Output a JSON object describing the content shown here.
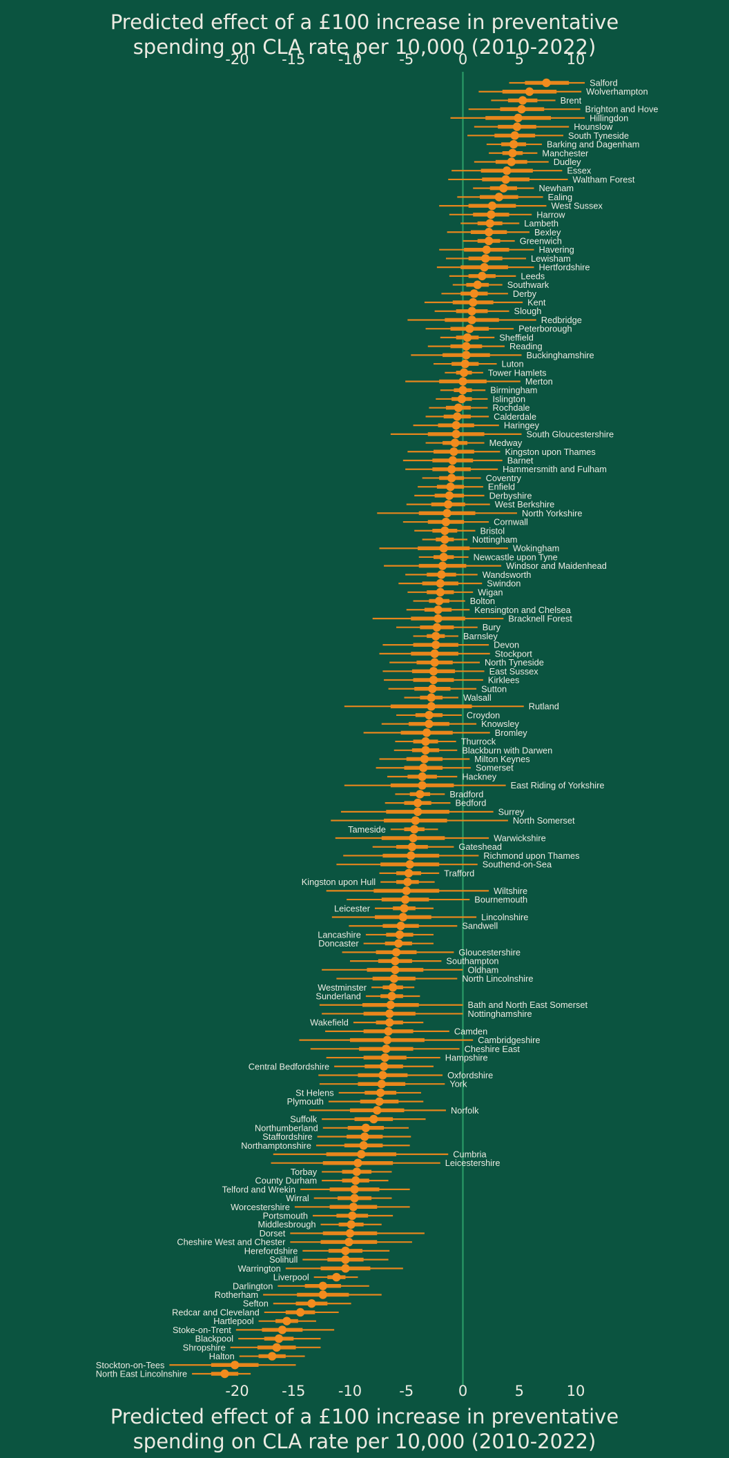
{
  "chart_data": {
    "type": "scatter",
    "title": "Predicted effect of a £100 increase in preventative spending on CLA rate per 10,000 (2010-2022)",
    "title_lines": [
      "Predicted effect of a £100 increase in preventative",
      "spending on CLA rate per 10,000 (2010-2022)"
    ],
    "xlabel": "",
    "ylabel": "",
    "xlim": [
      -22.5,
      11.5
    ],
    "x_ticks": [
      -20,
      -15,
      -10,
      -5,
      0,
      5,
      10
    ],
    "x_tick_labels": [
      "-20",
      "-15",
      "-10",
      "-5",
      "0",
      "5",
      "10"
    ],
    "x_axes": [
      "top",
      "bottom"
    ],
    "reference_line_x": 0,
    "grid": false,
    "colors": {
      "background": "#0b5440",
      "point": "#f28c1e",
      "interval": "#e8861c",
      "reference_line": "#2a9a66",
      "text": "#ecebe2"
    },
    "columns": [
      "label",
      "estimate",
      "inner_low",
      "inner_high",
      "outer_low",
      "outer_high"
    ],
    "rows": [
      [
        "Salford",
        7.4,
        5.5,
        9.4,
        4.1,
        10.8
      ],
      [
        "Wolverhampton",
        5.9,
        3.5,
        8.3,
        1.4,
        10.5
      ],
      [
        "Brent",
        5.3,
        4.0,
        6.6,
        2.5,
        8.2
      ],
      [
        "Brighton and Hove",
        5.2,
        3.3,
        7.2,
        0.5,
        10.4
      ],
      [
        "Hillingdon",
        4.9,
        2.0,
        7.8,
        -1.1,
        10.8
      ],
      [
        "Hounslow",
        4.8,
        3.1,
        6.5,
        1.0,
        9.4
      ],
      [
        "South Tyneside",
        4.6,
        2.8,
        6.4,
        0.4,
        8.9
      ],
      [
        "Barking and Dagenham",
        4.5,
        3.4,
        5.6,
        2.1,
        7.0
      ],
      [
        "Manchester",
        4.4,
        3.5,
        5.3,
        2.3,
        6.6
      ],
      [
        "Dudley",
        4.3,
        2.9,
        5.7,
        1.0,
        7.6
      ],
      [
        "Essex",
        3.9,
        1.6,
        6.2,
        -1.0,
        8.8
      ],
      [
        "Waltham Forest",
        3.8,
        1.7,
        5.9,
        -1.3,
        9.3
      ],
      [
        "Newham",
        3.6,
        2.4,
        4.8,
        0.9,
        6.3
      ],
      [
        "Ealing",
        3.2,
        1.5,
        4.9,
        -0.5,
        7.1
      ],
      [
        "West Sussex",
        2.6,
        0.5,
        4.7,
        -2.1,
        7.4
      ],
      [
        "Harrow",
        2.5,
        0.9,
        4.1,
        -1.2,
        6.1
      ],
      [
        "Lambeth",
        2.4,
        1.3,
        3.5,
        -0.2,
        5.0
      ],
      [
        "Bexley",
        2.3,
        0.7,
        3.9,
        -1.4,
        5.9
      ],
      [
        "Greenwich",
        2.3,
        1.3,
        3.3,
        0.0,
        4.6
      ],
      [
        "Havering",
        2.1,
        0.1,
        4.1,
        -2.1,
        6.3
      ],
      [
        "Lewisham",
        2.0,
        0.5,
        3.5,
        -1.5,
        5.6
      ],
      [
        "Hertfordshire",
        1.9,
        -0.2,
        4.0,
        -2.3,
        6.3
      ],
      [
        "Leeds",
        1.7,
        0.5,
        2.9,
        -1.2,
        4.7
      ],
      [
        "Southwark",
        1.3,
        0.3,
        2.3,
        -0.9,
        3.5
      ],
      [
        "Derby",
        1.0,
        -0.2,
        2.2,
        -1.9,
        4.0
      ],
      [
        "Kent",
        0.9,
        -0.9,
        2.7,
        -3.4,
        5.3
      ],
      [
        "Slough",
        0.8,
        -0.6,
        2.2,
        -2.5,
        4.1
      ],
      [
        "Redbridge",
        0.8,
        -1.6,
        3.2,
        -4.9,
        6.5
      ],
      [
        "Peterborough",
        0.6,
        -1.1,
        2.3,
        -3.3,
        4.5
      ],
      [
        "Sheffield",
        0.4,
        -0.6,
        1.4,
        -2.0,
        2.8
      ],
      [
        "Reading",
        0.3,
        -1.1,
        1.7,
        -3.1,
        3.7
      ],
      [
        "Buckinghamshire",
        0.3,
        -1.8,
        2.4,
        -4.6,
        5.2
      ],
      [
        "Luton",
        0.2,
        -1.0,
        1.4,
        -2.6,
        3.0
      ],
      [
        "Tower Hamlets",
        0.1,
        -0.6,
        0.8,
        -1.6,
        1.8
      ],
      [
        "Merton",
        0.0,
        -2.1,
        2.1,
        -5.1,
        5.1
      ],
      [
        "Birmingham",
        0.0,
        -0.8,
        0.8,
        -2.0,
        2.0
      ],
      [
        "Islington",
        -0.1,
        -1.0,
        0.8,
        -2.4,
        2.2
      ],
      [
        "Rochdale",
        -0.4,
        -1.5,
        0.7,
        -3.0,
        2.2
      ],
      [
        "Calderdale",
        -0.5,
        -1.7,
        0.7,
        -3.3,
        2.3
      ],
      [
        "Haringey",
        -0.6,
        -2.2,
        1.0,
        -4.4,
        3.2
      ],
      [
        "South Gloucestershire",
        -0.6,
        -3.1,
        1.9,
        -6.4,
        5.2
      ],
      [
        "Medway",
        -0.7,
        -1.8,
        0.4,
        -3.3,
        1.9
      ],
      [
        "Kingston upon Thames",
        -0.8,
        -2.6,
        1.0,
        -4.9,
        3.3
      ],
      [
        "Barnet",
        -0.9,
        -2.7,
        0.9,
        -5.3,
        3.5
      ],
      [
        "Hammersmith and Fulham",
        -1.0,
        -2.7,
        0.7,
        -5.1,
        3.1
      ],
      [
        "Coventry",
        -1.0,
        -2.1,
        0.1,
        -3.6,
        1.6
      ],
      [
        "Enfield",
        -1.1,
        -2.3,
        0.1,
        -4.0,
        1.8
      ],
      [
        "Derbyshire",
        -1.2,
        -2.5,
        0.1,
        -4.3,
        1.9
      ],
      [
        "West Berkshire",
        -1.3,
        -2.8,
        0.2,
        -5.0,
        2.4
      ],
      [
        "North Yorkshire",
        -1.4,
        -3.9,
        1.1,
        -7.6,
        4.8
      ],
      [
        "Cornwall",
        -1.5,
        -3.1,
        0.1,
        -5.3,
        2.3
      ],
      [
        "Bristol",
        -1.6,
        -2.7,
        -0.5,
        -4.3,
        1.1
      ],
      [
        "Nottingham",
        -1.6,
        -2.4,
        -0.8,
        -3.6,
        0.4
      ],
      [
        "Wokingham",
        -1.7,
        -4.0,
        0.6,
        -7.4,
        4.0
      ],
      [
        "Newcastle upon Tyne",
        -1.7,
        -2.6,
        -0.8,
        -3.9,
        0.5
      ],
      [
        "Windsor and Maidenhead",
        -1.8,
        -3.9,
        0.3,
        -7.0,
        3.4
      ],
      [
        "Wandsworth",
        -1.9,
        -3.2,
        -0.6,
        -5.1,
        1.3
      ],
      [
        "Swindon",
        -2.0,
        -3.6,
        -0.4,
        -5.7,
        1.7
      ],
      [
        "Wigan",
        -2.0,
        -3.2,
        -0.8,
        -4.9,
        0.9
      ],
      [
        "Bolton",
        -2.1,
        -3.0,
        -1.2,
        -4.4,
        0.2
      ],
      [
        "Kensington and Chelsea",
        -2.2,
        -3.4,
        -1.0,
        -5.0,
        0.6
      ],
      [
        "Bracknell Forest",
        -2.2,
        -4.6,
        0.2,
        -8.0,
        3.6
      ],
      [
        "Bury",
        -2.3,
        -3.8,
        -0.8,
        -5.9,
        1.3
      ],
      [
        "Barnsley",
        -2.4,
        -3.2,
        -1.6,
        -4.4,
        -0.4
      ],
      [
        "Devon",
        -2.4,
        -4.4,
        -0.4,
        -7.1,
        2.3
      ],
      [
        "Stockport",
        -2.5,
        -4.6,
        -0.4,
        -7.4,
        2.4
      ],
      [
        "North Tyneside",
        -2.5,
        -4.1,
        -0.9,
        -6.5,
        1.5
      ],
      [
        "East Sussex",
        -2.6,
        -4.5,
        -0.7,
        -7.1,
        1.9
      ],
      [
        "Kirklees",
        -2.6,
        -4.4,
        -0.8,
        -7.0,
        1.8
      ],
      [
        "Sutton",
        -2.7,
        -4.3,
        -1.1,
        -6.6,
        1.2
      ],
      [
        "Walsall",
        -2.8,
        -3.8,
        -1.8,
        -5.2,
        -0.4
      ],
      [
        "Rutland",
        -2.8,
        -6.4,
        0.8,
        -10.5,
        5.4
      ],
      [
        "Croydon",
        -3.0,
        -4.2,
        -1.8,
        -5.9,
        -0.1
      ],
      [
        "Knowsley",
        -3.0,
        -4.8,
        -1.2,
        -7.2,
        1.2
      ],
      [
        "Bromley",
        -3.2,
        -5.5,
        -0.9,
        -8.8,
        2.4
      ],
      [
        "Thurrock",
        -3.3,
        -4.4,
        -2.2,
        -6.0,
        -0.6
      ],
      [
        "Blackburn with Darwen",
        -3.3,
        -4.5,
        -2.1,
        -6.1,
        -0.5
      ],
      [
        "Milton Keynes",
        -3.4,
        -5.0,
        -1.8,
        -7.4,
        0.6
      ],
      [
        "Somerset",
        -3.5,
        -5.2,
        -1.8,
        -7.7,
        0.7
      ],
      [
        "Hackney",
        -3.6,
        -4.9,
        -2.3,
        -6.7,
        -0.5
      ],
      [
        "East Riding of Yorkshire",
        -3.6,
        -6.4,
        -0.8,
        -10.5,
        3.8
      ],
      [
        "Bradford",
        -3.8,
        -4.7,
        -2.9,
        -6.0,
        -1.6
      ],
      [
        "Bedford",
        -4.0,
        -5.2,
        -2.8,
        -6.9,
        -1.1
      ],
      [
        "Surrey",
        -4.0,
        -6.8,
        -1.2,
        -10.8,
        2.7
      ],
      [
        "North Somerset",
        -4.2,
        -7.0,
        -1.4,
        -11.7,
        4.0
      ],
      [
        "Tameside",
        -4.3,
        -5.2,
        -3.4,
        -6.4,
        -2.2
      ],
      [
        "Warwickshire",
        -4.4,
        -7.2,
        -1.6,
        -11.3,
        2.3
      ],
      [
        "Gateshead",
        -4.5,
        -5.9,
        -3.1,
        -8.0,
        -0.8
      ],
      [
        "Richmond upon Thames",
        -4.6,
        -7.1,
        -2.1,
        -10.6,
        1.4
      ],
      [
        "Southend-on-Sea",
        -4.7,
        -7.3,
        -2.1,
        -11.2,
        1.3
      ],
      [
        "Trafford",
        -4.8,
        -5.9,
        -3.7,
        -7.4,
        -2.1
      ],
      [
        "Kingston upon Hull",
        -4.9,
        -5.9,
        -3.9,
        -7.3,
        -2.5
      ],
      [
        "Wiltshire",
        -5.0,
        -7.9,
        -2.1,
        -12.1,
        2.3
      ],
      [
        "Bournemouth",
        -5.1,
        -7.2,
        -3.0,
        -10.3,
        0.6
      ],
      [
        "Leicester",
        -5.2,
        -6.2,
        -4.2,
        -7.8,
        -2.6
      ],
      [
        "Lincolnshire",
        -5.3,
        -7.8,
        -2.8,
        -11.6,
        1.2
      ],
      [
        "Sandwell",
        -5.5,
        -7.1,
        -3.9,
        -10.1,
        -0.5
      ],
      [
        "Lancashire",
        -5.6,
        -6.8,
        -4.4,
        -8.6,
        -2.6
      ],
      [
        "Doncaster",
        -5.7,
        -6.9,
        -4.5,
        -8.8,
        -2.6
      ],
      [
        "Gloucestershire",
        -5.9,
        -7.7,
        -4.1,
        -10.7,
        -0.8
      ],
      [
        "Southampton",
        -6.0,
        -7.5,
        -4.5,
        -10.0,
        -1.9
      ],
      [
        "Oldham",
        -6.0,
        -8.5,
        -3.5,
        -12.5,
        0.0
      ],
      [
        "North Lincolnshire",
        -6.1,
        -8.0,
        -4.2,
        -11.2,
        -0.5
      ],
      [
        "Westminster",
        -6.2,
        -7.1,
        -5.3,
        -8.1,
        -4.3
      ],
      [
        "Sunderland",
        -6.3,
        -7.3,
        -5.3,
        -8.6,
        -3.8
      ],
      [
        "Bath and North East Somerset",
        -6.4,
        -8.9,
        -3.9,
        -12.7,
        0.0
      ],
      [
        "Nottinghamshire",
        -6.5,
        -8.8,
        -4.2,
        -12.5,
        0.0
      ],
      [
        "Wakefield",
        -6.5,
        -7.7,
        -5.3,
        -9.7,
        -3.5
      ],
      [
        "Camden",
        -6.6,
        -8.8,
        -4.4,
        -12.2,
        -1.2
      ],
      [
        "Cambridgeshire",
        -6.7,
        -10.0,
        -3.4,
        -14.5,
        0.9
      ],
      [
        "Cheshire East",
        -6.8,
        -9.2,
        -4.4,
        -13.5,
        -0.3
      ],
      [
        "Hampshire",
        -6.9,
        -8.8,
        -5.0,
        -12.1,
        -2.0
      ],
      [
        "Central Bedfordshire",
        -7.0,
        -8.7,
        -5.3,
        -11.4,
        -2.6
      ],
      [
        "Oxfordshire",
        -7.1,
        -9.3,
        -4.9,
        -12.8,
        -1.8
      ],
      [
        "York",
        -7.2,
        -9.3,
        -5.1,
        -12.7,
        -1.6
      ],
      [
        "St  Helens",
        -7.3,
        -8.7,
        -5.9,
        -11.0,
        -3.7
      ],
      [
        "Plymouth",
        -7.4,
        -9.1,
        -5.7,
        -11.9,
        -3.5
      ],
      [
        "Norfolk",
        -7.6,
        -10.0,
        -5.2,
        -13.6,
        -1.5
      ],
      [
        "Suffolk",
        -7.9,
        -9.6,
        -6.2,
        -12.5,
        -3.3
      ],
      [
        "Northumberland",
        -8.6,
        -10.2,
        -7.0,
        -12.4,
        -4.8
      ],
      [
        "Staffordshire",
        -8.7,
        -10.3,
        -7.1,
        -12.9,
        -4.6
      ],
      [
        "Northamptonshire",
        -8.8,
        -10.5,
        -7.1,
        -13.0,
        -4.7
      ],
      [
        "Cumbria",
        -9.0,
        -12.1,
        -5.9,
        -16.8,
        -1.3
      ],
      [
        "Leicestershire",
        -9.3,
        -12.4,
        -6.2,
        -17.0,
        -2.0
      ],
      [
        "Torbay",
        -9.4,
        -10.7,
        -8.1,
        -12.5,
        -6.3
      ],
      [
        "County Durham",
        -9.5,
        -10.7,
        -8.3,
        -12.5,
        -6.6
      ],
      [
        "Telford and Wrekin",
        -9.6,
        -11.8,
        -7.4,
        -14.4,
        -4.7
      ],
      [
        "Wirral",
        -9.6,
        -11.1,
        -8.1,
        -13.2,
        -6.3
      ],
      [
        "Worcestershire",
        -9.7,
        -11.8,
        -7.6,
        -14.9,
        -4.7
      ],
      [
        "Portsmouth",
        -9.8,
        -11.2,
        -8.4,
        -13.3,
        -6.2
      ],
      [
        "Middlesbrough",
        -9.9,
        -11.0,
        -8.8,
        -12.6,
        -7.2
      ],
      [
        "Dorset",
        -10.0,
        -12.4,
        -7.6,
        -15.3,
        -3.4
      ],
      [
        "Cheshire West and Chester",
        -10.1,
        -12.6,
        -7.6,
        -15.3,
        -4.5
      ],
      [
        "Herefordshire",
        -10.4,
        -11.9,
        -8.9,
        -14.2,
        -6.5
      ],
      [
        "Solihull",
        -10.4,
        -12.0,
        -8.8,
        -14.2,
        -6.6
      ],
      [
        "Warrington",
        -10.4,
        -12.6,
        -8.2,
        -15.7,
        -5.3
      ],
      [
        "Liverpool",
        -11.2,
        -12.0,
        -10.4,
        -13.2,
        -9.3
      ],
      [
        "Darlington",
        -12.4,
        -14.0,
        -10.8,
        -16.4,
        -8.3
      ],
      [
        "Rotherham",
        -12.4,
        -14.7,
        -10.1,
        -17.7,
        -7.2
      ],
      [
        "Sefton",
        -13.4,
        -14.8,
        -12.0,
        -16.8,
        -9.9
      ],
      [
        "Redcar and Cleveland",
        -14.4,
        -15.7,
        -13.1,
        -17.6,
        -11.0
      ],
      [
        "Hartlepool",
        -15.6,
        -16.6,
        -14.6,
        -18.1,
        -13.0
      ],
      [
        "Stoke-on-Trent",
        -16.0,
        -17.8,
        -14.2,
        -20.1,
        -11.4
      ],
      [
        "Blackpool",
        -16.3,
        -17.6,
        -15.0,
        -19.9,
        -12.6
      ],
      [
        "Shropshire",
        -16.5,
        -18.2,
        -14.8,
        -20.6,
        -12.6
      ],
      [
        "Halton",
        -16.9,
        -18.1,
        -15.7,
        -19.8,
        -14.0
      ],
      [
        "Stockton-on-Tees",
        -20.2,
        -22.3,
        -18.1,
        -26.0,
        -14.8
      ],
      [
        "North East Lincolnshire",
        -21.1,
        -22.3,
        -19.9,
        -24.0,
        -18.8
      ]
    ]
  }
}
